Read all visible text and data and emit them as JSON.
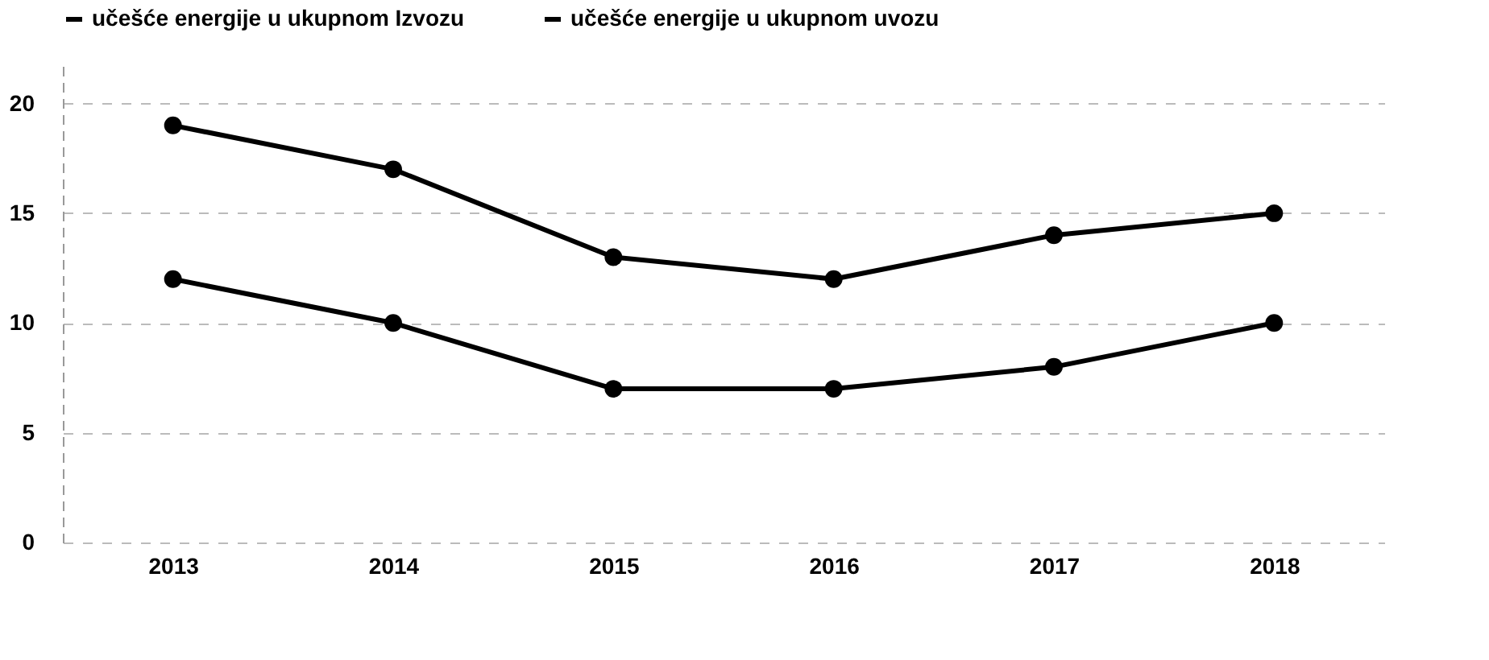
{
  "chart_data": {
    "type": "line",
    "categories": [
      "2013",
      "2014",
      "2015",
      "2016",
      "2017",
      "2018"
    ],
    "series": [
      {
        "name": "učešće energije u ukupnom  Izvozu",
        "color": "#000000",
        "values": [
          12,
          10,
          7,
          7,
          8,
          10
        ]
      },
      {
        "name": "učešće energije u ukupnom  uvozu",
        "color": "#000000",
        "values": [
          19,
          17,
          13,
          12,
          14,
          15
        ]
      }
    ],
    "ylim": [
      0,
      22
    ],
    "yticks": [
      0,
      5,
      10,
      15,
      20
    ],
    "grid": "y",
    "legend": "top",
    "marker": "circle",
    "line_style": "solid"
  }
}
